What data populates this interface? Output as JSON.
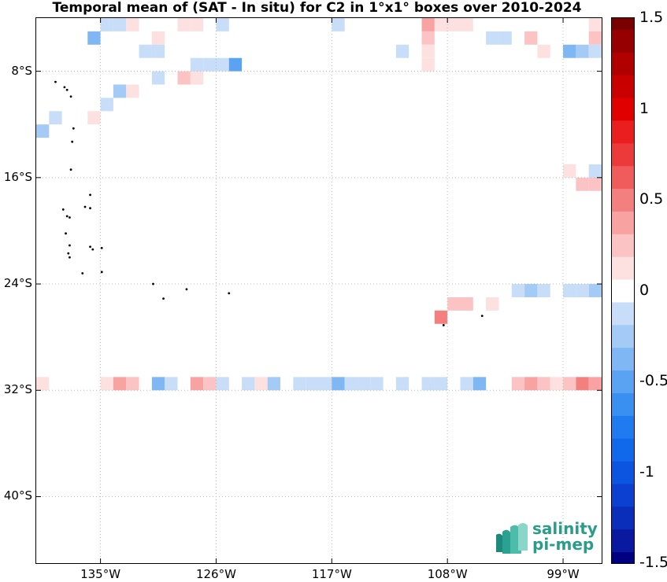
{
  "title": "Temporal mean of (SAT - In situ) for C2 in 1°x1° boxes over 2010-2024",
  "map": {
    "lat_range": [
      -45,
      -4
    ],
    "lon_range": [
      -140,
      -96
    ],
    "grid": true,
    "lat_ticks": [
      {
        "value": -8,
        "label": "8°S"
      },
      {
        "value": -16,
        "label": "16°S"
      },
      {
        "value": -24,
        "label": "24°S"
      },
      {
        "value": -32,
        "label": "32°S"
      },
      {
        "value": -40,
        "label": "40°S"
      }
    ],
    "lon_ticks": [
      {
        "value": -135,
        "label": "135°W"
      },
      {
        "value": -126,
        "label": "126°W"
      },
      {
        "value": -117,
        "label": "117°W"
      },
      {
        "value": -108,
        "label": "108°W"
      },
      {
        "value": -99,
        "label": "99°W"
      }
    ],
    "islands": [
      [
        -138.5,
        -8.8
      ],
      [
        -137.8,
        -9.2
      ],
      [
        -137.6,
        -9.4
      ],
      [
        -137.3,
        -9.9
      ],
      [
        -137.1,
        -12.3
      ],
      [
        -137.2,
        -13.3
      ],
      [
        -137.3,
        -15.4
      ],
      [
        -135.8,
        -17.3
      ],
      [
        -137.9,
        -18.4
      ],
      [
        -137.6,
        -18.9
      ],
      [
        -137.4,
        -19.0
      ],
      [
        -136.2,
        -18.2
      ],
      [
        -135.8,
        -18.3
      ],
      [
        -137.7,
        -20.2
      ],
      [
        -137.4,
        -21.1
      ],
      [
        -137.5,
        -21.7
      ],
      [
        -137.4,
        -22.0
      ],
      [
        -135.8,
        -21.2
      ],
      [
        -135.6,
        -21.4
      ],
      [
        -134.9,
        -21.3
      ],
      [
        -136.4,
        -23.2
      ],
      [
        -134.9,
        -23.1
      ],
      [
        -130.9,
        -24.0
      ],
      [
        -130.1,
        -25.1
      ],
      [
        -128.3,
        -24.4
      ],
      [
        -125.0,
        -24.7
      ],
      [
        -108.3,
        -27.1
      ],
      [
        -105.3,
        -26.4
      ]
    ],
    "cells": [
      {
        "lon": -134.5,
        "lat": -4.5,
        "v": -0.125
      },
      {
        "lon": -133.5,
        "lat": -4.5,
        "v": -0.125
      },
      {
        "lon": -132.5,
        "lat": -4.5,
        "v": 0.125
      },
      {
        "lon": -128.5,
        "lat": -4.5,
        "v": 0.125
      },
      {
        "lon": -127.5,
        "lat": -4.5,
        "v": 0.125
      },
      {
        "lon": -125.5,
        "lat": -4.5,
        "v": -0.125
      },
      {
        "lon": -116.5,
        "lat": -4.5,
        "v": -0.125
      },
      {
        "lon": -109.5,
        "lat": -4.5,
        "v": 0.375
      },
      {
        "lon": -108.5,
        "lat": -4.5,
        "v": 0.125
      },
      {
        "lon": -107.5,
        "lat": -4.5,
        "v": 0.125
      },
      {
        "lon": -106.5,
        "lat": -4.5,
        "v": 0.125
      },
      {
        "lon": -96.5,
        "lat": -4.5,
        "v": 0.125
      },
      {
        "lon": -135.5,
        "lat": -5.5,
        "v": -0.375
      },
      {
        "lon": -130.5,
        "lat": -5.5,
        "v": 0.125
      },
      {
        "lon": -109.5,
        "lat": -5.5,
        "v": 0.25
      },
      {
        "lon": -104.5,
        "lat": -5.5,
        "v": -0.125
      },
      {
        "lon": -103.5,
        "lat": -5.5,
        "v": -0.125
      },
      {
        "lon": -101.5,
        "lat": -5.5,
        "v": 0.25
      },
      {
        "lon": -96.5,
        "lat": -5.5,
        "v": 0.25
      },
      {
        "lon": -131.5,
        "lat": -6.5,
        "v": -0.125
      },
      {
        "lon": -130.5,
        "lat": -6.5,
        "v": -0.125
      },
      {
        "lon": -111.5,
        "lat": -6.5,
        "v": -0.125
      },
      {
        "lon": -109.5,
        "lat": -6.5,
        "v": 0.125
      },
      {
        "lon": -100.5,
        "lat": -6.5,
        "v": 0.125
      },
      {
        "lon": -98.5,
        "lat": -6.5,
        "v": -0.375
      },
      {
        "lon": -97.5,
        "lat": -6.5,
        "v": -0.25
      },
      {
        "lon": -96.5,
        "lat": -6.5,
        "v": -0.125
      },
      {
        "lon": -127.5,
        "lat": -7.5,
        "v": -0.125
      },
      {
        "lon": -126.5,
        "lat": -7.5,
        "v": -0.125
      },
      {
        "lon": -125.5,
        "lat": -7.5,
        "v": -0.125
      },
      {
        "lon": -124.5,
        "lat": -7.5,
        "v": -0.5
      },
      {
        "lon": -109.5,
        "lat": -7.5,
        "v": 0.125
      },
      {
        "lon": -130.5,
        "lat": -8.5,
        "v": -0.125
      },
      {
        "lon": -128.5,
        "lat": -8.5,
        "v": 0.25
      },
      {
        "lon": -127.5,
        "lat": -8.5,
        "v": 0.125
      },
      {
        "lon": -133.5,
        "lat": -9.5,
        "v": -0.25
      },
      {
        "lon": -132.5,
        "lat": -9.5,
        "v": 0.125
      },
      {
        "lon": -134.5,
        "lat": -10.5,
        "v": -0.125
      },
      {
        "lon": -138.5,
        "lat": -11.5,
        "v": -0.125
      },
      {
        "lon": -135.5,
        "lat": -11.5,
        "v": 0.125
      },
      {
        "lon": -139.5,
        "lat": -12.5,
        "v": -0.25
      },
      {
        "lon": -98.5,
        "lat": -15.5,
        "v": 0.125
      },
      {
        "lon": -96.5,
        "lat": -15.5,
        "v": -0.125
      },
      {
        "lon": -97.5,
        "lat": -16.5,
        "v": 0.25
      },
      {
        "lon": -96.5,
        "lat": -16.5,
        "v": 0.25
      },
      {
        "lon": -102.5,
        "lat": -24.5,
        "v": -0.125
      },
      {
        "lon": -101.5,
        "lat": -24.5,
        "v": -0.25
      },
      {
        "lon": -100.5,
        "lat": -24.5,
        "v": -0.125
      },
      {
        "lon": -98.5,
        "lat": -24.5,
        "v": -0.125
      },
      {
        "lon": -96.5,
        "lat": -24.5,
        "v": -0.25
      },
      {
        "lon": -97.5,
        "lat": -24.5,
        "v": -0.125
      },
      {
        "lon": -107.5,
        "lat": -25.5,
        "v": 0.25
      },
      {
        "lon": -106.5,
        "lat": -25.5,
        "v": 0.25
      },
      {
        "lon": -104.5,
        "lat": -25.5,
        "v": 0.125
      },
      {
        "lon": -108.5,
        "lat": -26.5,
        "v": 0.5
      },
      {
        "lon": -139.5,
        "lat": -31.5,
        "v": 0.125
      },
      {
        "lon": -134.5,
        "lat": -31.5,
        "v": 0.125
      },
      {
        "lon": -133.5,
        "lat": -31.5,
        "v": 0.375
      },
      {
        "lon": -132.5,
        "lat": -31.5,
        "v": 0.25
      },
      {
        "lon": -130.5,
        "lat": -31.5,
        "v": -0.375
      },
      {
        "lon": -129.5,
        "lat": -31.5,
        "v": -0.125
      },
      {
        "lon": -127.5,
        "lat": -31.5,
        "v": 0.375
      },
      {
        "lon": -126.5,
        "lat": -31.5,
        "v": 0.25
      },
      {
        "lon": -125.5,
        "lat": -31.5,
        "v": -0.125
      },
      {
        "lon": -123.5,
        "lat": -31.5,
        "v": -0.125
      },
      {
        "lon": -122.5,
        "lat": -31.5,
        "v": 0.125
      },
      {
        "lon": -121.5,
        "lat": -31.5,
        "v": -0.25
      },
      {
        "lon": -119.5,
        "lat": -31.5,
        "v": -0.125
      },
      {
        "lon": -118.5,
        "lat": -31.5,
        "v": -0.125
      },
      {
        "lon": -117.5,
        "lat": -31.5,
        "v": -0.125
      },
      {
        "lon": -116.5,
        "lat": -31.5,
        "v": -0.375
      },
      {
        "lon": -115.5,
        "lat": -31.5,
        "v": -0.125
      },
      {
        "lon": -114.5,
        "lat": -31.5,
        "v": -0.125
      },
      {
        "lon": -113.5,
        "lat": -31.5,
        "v": -0.125
      },
      {
        "lon": -111.5,
        "lat": -31.5,
        "v": -0.125
      },
      {
        "lon": -109.5,
        "lat": -31.5,
        "v": -0.125
      },
      {
        "lon": -108.5,
        "lat": -31.5,
        "v": -0.125
      },
      {
        "lon": -106.5,
        "lat": -31.5,
        "v": -0.125
      },
      {
        "lon": -105.5,
        "lat": -31.5,
        "v": -0.375
      },
      {
        "lon": -102.5,
        "lat": -31.5,
        "v": 0.25
      },
      {
        "lon": -101.5,
        "lat": -31.5,
        "v": 0.375
      },
      {
        "lon": -100.5,
        "lat": -31.5,
        "v": 0.25
      },
      {
        "lon": -99.5,
        "lat": -31.5,
        "v": 0.125
      },
      {
        "lon": -98.5,
        "lat": -31.5,
        "v": 0.25
      },
      {
        "lon": -97.5,
        "lat": -31.5,
        "v": 0.5
      },
      {
        "lon": -96.5,
        "lat": -31.5,
        "v": 0.375
      }
    ]
  },
  "colorbar": {
    "range": [
      -1.5,
      1.5
    ],
    "step": 0.125,
    "tick_labels": [
      {
        "value": 1.5,
        "label": "1.5"
      },
      {
        "value": 1,
        "label": "1"
      },
      {
        "value": 0.5,
        "label": "0.5"
      },
      {
        "value": 0,
        "label": "0"
      },
      {
        "value": -0.5,
        "label": "-0.5"
      },
      {
        "value": -1,
        "label": "-1"
      },
      {
        "value": -1.5,
        "label": "-1.5"
      }
    ],
    "colors": [
      "#000080",
      "#0a1aa0",
      "#0a2dba",
      "#0b40d0",
      "#0c55e0",
      "#1068ea",
      "#1f7cf0",
      "#3a90f0",
      "#5aa3f2",
      "#7eb7f4",
      "#a4cbf6",
      "#c8ddf8",
      "#ffffff",
      "#fde0e0",
      "#fbc3c3",
      "#f8a2a2",
      "#f47f7f",
      "#f05c5c",
      "#ec3a3a",
      "#ea1e1e",
      "#e00000",
      "#c80000",
      "#b00000",
      "#960000",
      "#7a0000"
    ]
  },
  "logo": {
    "line1": "salinity",
    "line2": "pi-mep",
    "color": "#2a9d8a"
  }
}
